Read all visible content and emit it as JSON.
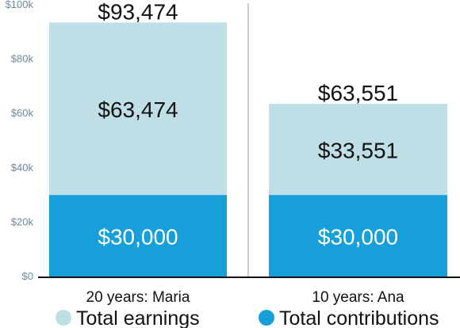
{
  "chart_data": {
    "type": "bar",
    "stacked": true,
    "categories": [
      "20 years: Maria",
      "10 years: Ana"
    ],
    "series": [
      {
        "name": "Total contributions",
        "values": [
          30000,
          30000
        ],
        "labels": [
          "$30,000",
          "$30,000"
        ]
      },
      {
        "name": "Total earnings",
        "values": [
          63474,
          33551
        ],
        "labels": [
          "$63,474",
          "$33,551"
        ]
      }
    ],
    "totals": [
      93474,
      63551
    ],
    "total_labels": [
      "$93,474",
      "$63,551"
    ],
    "y_ticks": [
      0,
      20000,
      40000,
      60000,
      80000,
      100000
    ],
    "y_tick_labels": [
      "$0",
      "$20k",
      "$40k",
      "$60k",
      "$80k",
      "$100k"
    ],
    "ylim": [
      0,
      100000
    ],
    "grid": false,
    "legend": "bottom",
    "colors": {
      "contributions": "#169fd9",
      "earnings": "#bfdfe6",
      "axis_text": "#6a8a9a",
      "divider": "#b8b8b8"
    }
  }
}
